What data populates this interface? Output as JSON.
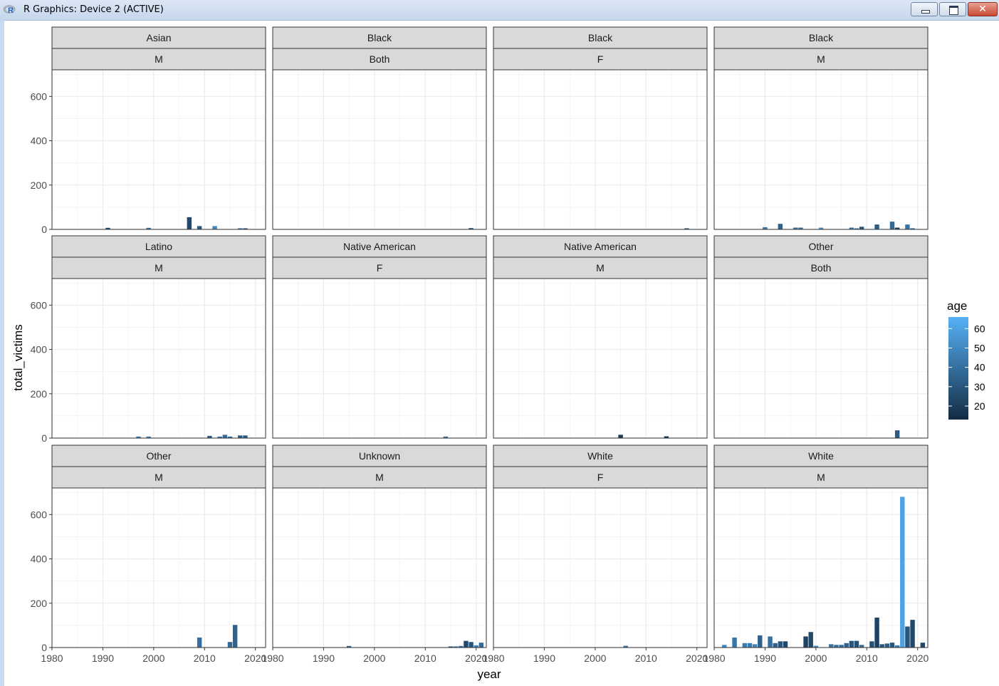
{
  "window": {
    "title": "R Graphics: Device 2 (ACTIVE)",
    "icon": "r-logo-icon",
    "buttons": [
      "minimize",
      "maximize",
      "close"
    ]
  },
  "chart_data": {
    "type": "bar",
    "facet_layout": "wrap",
    "xlabel": "year",
    "ylabel": "total_victims",
    "xlim": [
      1980,
      2022
    ],
    "ylim": [
      0,
      720
    ],
    "x_ticks": [
      1980,
      1990,
      2000,
      2010,
      2020
    ],
    "y_ticks": [
      0,
      200,
      400,
      600
    ],
    "y_minor_ticks": [
      100,
      300,
      500,
      700
    ],
    "x_tick_labels": [
      "1980",
      "1990",
      "2000",
      "2010",
      "2020"
    ],
    "y_tick_labels": [
      "0",
      "200",
      "400",
      "600"
    ],
    "grid": true,
    "legend": {
      "title": "age",
      "position": "right",
      "type": "colorbar",
      "range": [
        13,
        66
      ],
      "ticks": [
        20,
        30,
        40,
        50,
        60
      ],
      "tick_labels": [
        "20",
        "30",
        "40",
        "50",
        "60"
      ],
      "low_color": "#132B43",
      "high_color": "#56B1F7"
    },
    "panels": [
      {
        "strip": [
          "Asian",
          "M"
        ],
        "bars": [
          {
            "x": 1991,
            "y": 7,
            "age": 25
          },
          {
            "x": 1999,
            "y": 7,
            "age": 40
          },
          {
            "x": 2007,
            "y": 55,
            "age": 25
          },
          {
            "x": 2009,
            "y": 15,
            "age": 32
          },
          {
            "x": 2012,
            "y": 15,
            "age": 50
          },
          {
            "x": 2017,
            "y": 5,
            "age": 38
          },
          {
            "x": 2018,
            "y": 5,
            "age": 30
          }
        ]
      },
      {
        "strip": [
          "Black",
          "Both"
        ],
        "bars": [
          {
            "x": 2019,
            "y": 6,
            "age": 30
          }
        ]
      },
      {
        "strip": [
          "Black",
          "F"
        ],
        "bars": [
          {
            "x": 2018,
            "y": 5,
            "age": 30
          }
        ]
      },
      {
        "strip": [
          "Black",
          "M"
        ],
        "bars": [
          {
            "x": 1990,
            "y": 10,
            "age": 42
          },
          {
            "x": 1993,
            "y": 25,
            "age": 35
          },
          {
            "x": 1996,
            "y": 8,
            "age": 40
          },
          {
            "x": 1997,
            "y": 8,
            "age": 40
          },
          {
            "x": 2001,
            "y": 8,
            "age": 55
          },
          {
            "x": 2007,
            "y": 8,
            "age": 42
          },
          {
            "x": 2008,
            "y": 5,
            "age": 45
          },
          {
            "x": 2009,
            "y": 12,
            "age": 30
          },
          {
            "x": 2012,
            "y": 22,
            "age": 32
          },
          {
            "x": 2015,
            "y": 35,
            "age": 38
          },
          {
            "x": 2016,
            "y": 8,
            "age": 20
          },
          {
            "x": 2018,
            "y": 22,
            "age": 42
          },
          {
            "x": 2019,
            "y": 5,
            "age": 38
          }
        ]
      },
      {
        "strip": [
          "Latino",
          "M"
        ],
        "bars": [
          {
            "x": 1997,
            "y": 7,
            "age": 42
          },
          {
            "x": 1999,
            "y": 7,
            "age": 42
          },
          {
            "x": 2011,
            "y": 10,
            "age": 32
          },
          {
            "x": 2013,
            "y": 7,
            "age": 42
          },
          {
            "x": 2014,
            "y": 15,
            "age": 38
          },
          {
            "x": 2015,
            "y": 7,
            "age": 40
          },
          {
            "x": 2017,
            "y": 12,
            "age": 32
          },
          {
            "x": 2018,
            "y": 12,
            "age": 32
          }
        ]
      },
      {
        "strip": [
          "Native American",
          "F"
        ],
        "bars": [
          {
            "x": 2014,
            "y": 7,
            "age": 42
          }
        ]
      },
      {
        "strip": [
          "Native American",
          "M"
        ],
        "bars": [
          {
            "x": 2005,
            "y": 15,
            "age": 18
          },
          {
            "x": 2014,
            "y": 8,
            "age": 18
          }
        ]
      },
      {
        "strip": [
          "Other",
          "Both"
        ],
        "bars": [
          {
            "x": 2016,
            "y": 35,
            "age": 32
          }
        ]
      },
      {
        "strip": [
          "Other",
          "M"
        ],
        "bars": [
          {
            "x": 2009,
            "y": 45,
            "age": 40
          },
          {
            "x": 2015,
            "y": 25,
            "age": 38
          },
          {
            "x": 2016,
            "y": 102,
            "age": 35
          }
        ]
      },
      {
        "strip": [
          "Unknown",
          "M"
        ],
        "bars": [
          {
            "x": 1995,
            "y": 7,
            "age": 35
          },
          {
            "x": 2015,
            "y": 5,
            "age": 30
          },
          {
            "x": 2016,
            "y": 5,
            "age": 38
          },
          {
            "x": 2017,
            "y": 7,
            "age": 40
          },
          {
            "x": 2018,
            "y": 30,
            "age": 25
          },
          {
            "x": 2019,
            "y": 25,
            "age": 30
          },
          {
            "x": 2020,
            "y": 10,
            "age": 48
          },
          {
            "x": 2021,
            "y": 22,
            "age": 38
          }
        ]
      },
      {
        "strip": [
          "White",
          "F"
        ],
        "bars": [
          {
            "x": 2006,
            "y": 8,
            "age": 42
          }
        ]
      },
      {
        "strip": [
          "White",
          "M"
        ],
        "bars": [
          {
            "x": 1982,
            "y": 12,
            "age": 50
          },
          {
            "x": 1984,
            "y": 45,
            "age": 42
          },
          {
            "x": 1986,
            "y": 20,
            "age": 45
          },
          {
            "x": 1987,
            "y": 20,
            "age": 45
          },
          {
            "x": 1988,
            "y": 15,
            "age": 48
          },
          {
            "x": 1989,
            "y": 55,
            "age": 35
          },
          {
            "x": 1991,
            "y": 50,
            "age": 40
          },
          {
            "x": 1992,
            "y": 20,
            "age": 35
          },
          {
            "x": 1993,
            "y": 28,
            "age": 30
          },
          {
            "x": 1994,
            "y": 28,
            "age": 25
          },
          {
            "x": 1998,
            "y": 50,
            "age": 22
          },
          {
            "x": 1999,
            "y": 70,
            "age": 25
          },
          {
            "x": 2000,
            "y": 8,
            "age": 50
          },
          {
            "x": 2003,
            "y": 15,
            "age": 42
          },
          {
            "x": 2004,
            "y": 12,
            "age": 40
          },
          {
            "x": 2005,
            "y": 12,
            "age": 38
          },
          {
            "x": 2006,
            "y": 20,
            "age": 35
          },
          {
            "x": 2007,
            "y": 30,
            "age": 30
          },
          {
            "x": 2008,
            "y": 30,
            "age": 28
          },
          {
            "x": 2009,
            "y": 12,
            "age": 40
          },
          {
            "x": 2011,
            "y": 28,
            "age": 28
          },
          {
            "x": 2012,
            "y": 135,
            "age": 22
          },
          {
            "x": 2013,
            "y": 15,
            "age": 30
          },
          {
            "x": 2014,
            "y": 18,
            "age": 32
          },
          {
            "x": 2015,
            "y": 22,
            "age": 30
          },
          {
            "x": 2016,
            "y": 10,
            "age": 45
          },
          {
            "x": 2017,
            "y": 680,
            "age": 60
          },
          {
            "x": 2018,
            "y": 95,
            "age": 30
          },
          {
            "x": 2019,
            "y": 125,
            "age": 25
          },
          {
            "x": 2021,
            "y": 22,
            "age": 25
          }
        ]
      }
    ]
  }
}
